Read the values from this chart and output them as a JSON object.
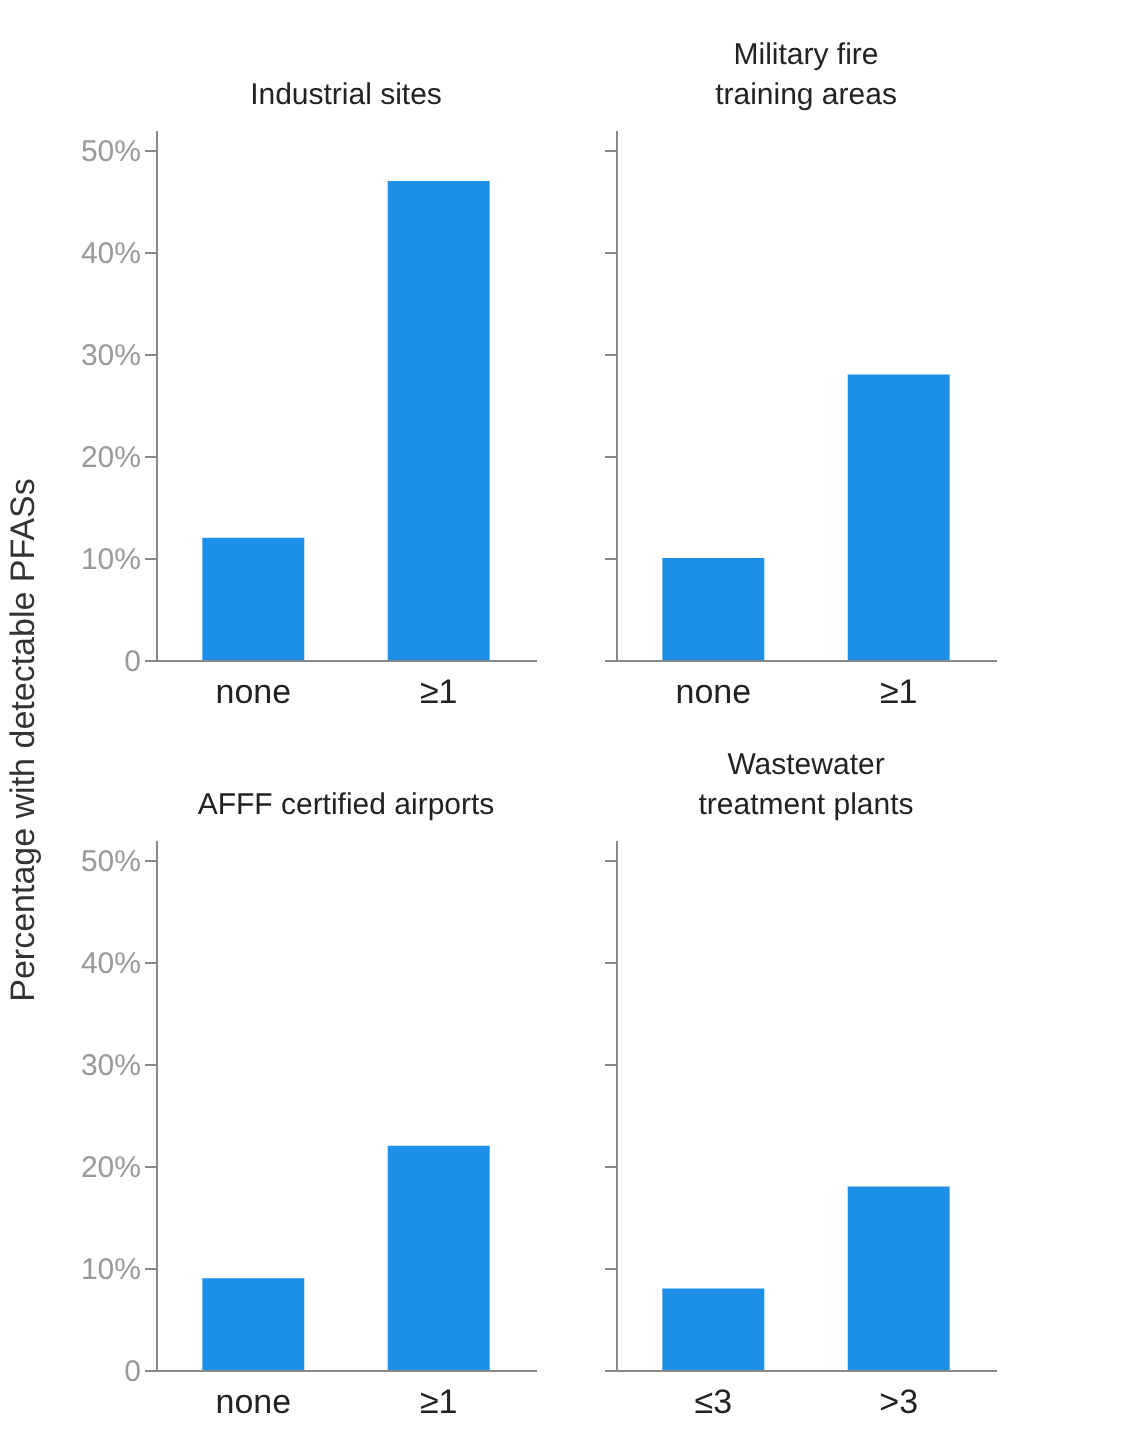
{
  "chart_data": [
    {
      "type": "bar",
      "title": "Industrial sites",
      "ylabel": "Percentage with detectable PFASs",
      "categories": [
        "none",
        "≥1"
      ],
      "values": [
        12,
        47
      ],
      "color": "#1e8fe6",
      "ylim": [
        0,
        52
      ],
      "yticks": [
        {
          "value": 0,
          "label": "0"
        },
        {
          "value": 10,
          "label": "10%"
        },
        {
          "value": 20,
          "label": "20%"
        },
        {
          "value": 30,
          "label": "30%"
        },
        {
          "value": 40,
          "label": "40%"
        },
        {
          "value": 50,
          "label": "50%"
        }
      ],
      "grid": false
    },
    {
      "type": "bar",
      "title": "Military fire training areas",
      "categories": [
        "none",
        "≥1"
      ],
      "values": [
        10,
        28
      ],
      "color": "#1e8fe6",
      "ylim": [
        0,
        52
      ],
      "yticks": [
        0,
        10,
        20,
        30,
        40,
        50
      ],
      "tick_labels": "x",
      "grid": false
    },
    {
      "type": "bar",
      "title": "AFFF certified airports",
      "categories": [
        "none",
        "≥1"
      ],
      "values": [
        9,
        22
      ],
      "color": "#1e8fe6",
      "ylim": [
        0,
        52
      ],
      "yticks": [
        {
          "value": 0,
          "label": "0"
        },
        {
          "value": 10,
          "label": "10%"
        },
        {
          "value": 20,
          "label": "20%"
        },
        {
          "value": 30,
          "label": "30%"
        },
        {
          "value": 40,
          "label": "40%"
        },
        {
          "value": 50,
          "label": "50%"
        }
      ],
      "grid": false
    },
    {
      "type": "bar",
      "title": "Wastewater treatment plants",
      "categories": [
        "≤3",
        ">3"
      ],
      "values": [
        8,
        18
      ],
      "color": "#1e8fe6",
      "ylim": [
        0,
        52
      ],
      "yticks": [
        0,
        10,
        20,
        30,
        40,
        50
      ],
      "tick_labels": "x",
      "grid": false
    }
  ]
}
